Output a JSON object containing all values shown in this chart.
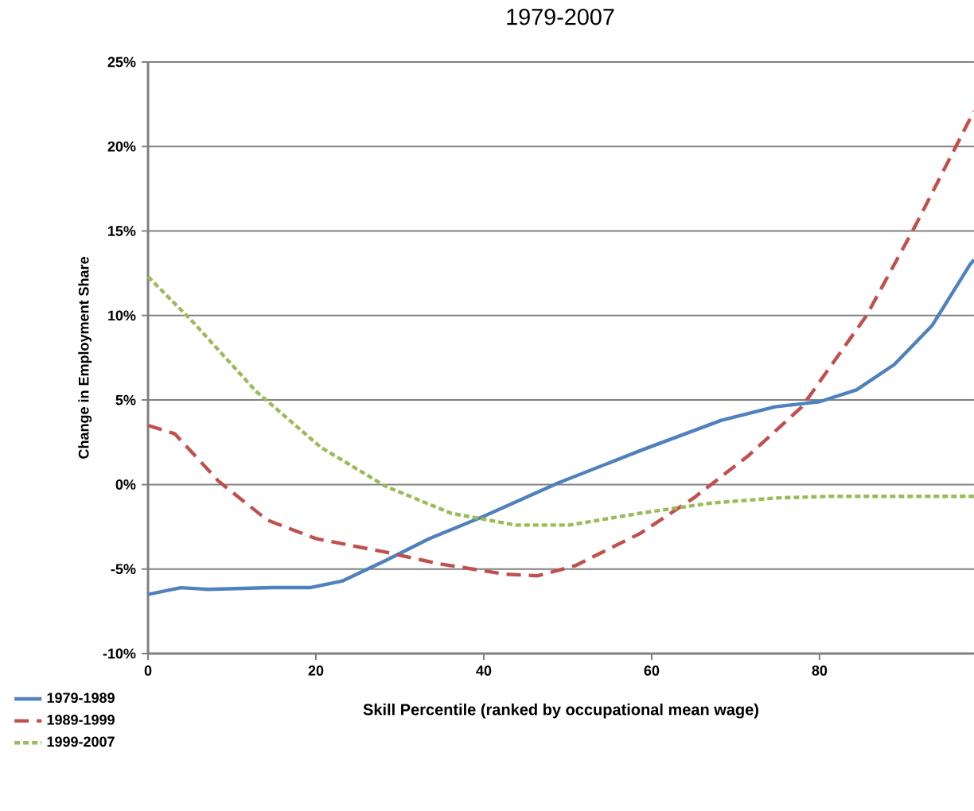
{
  "chart_data": {
    "type": "line",
    "title": "1979-2007",
    "xlabel": "Skill Percentile (ranked by occupational  mean wage)",
    "ylabel": "Change in Employment Share",
    "xlim": [
      0,
      98.4
    ],
    "xticks": [
      0,
      20,
      40,
      60,
      80
    ],
    "ylim": [
      -10,
      25
    ],
    "yticks": [
      {
        "value": -10,
        "label": "-10%"
      },
      {
        "value": -5,
        "label": "-5%"
      },
      {
        "value": 0,
        "label": "0%"
      },
      {
        "value": 5,
        "label": "5%"
      },
      {
        "value": 10,
        "label": "10%"
      },
      {
        "value": 15,
        "label": "15%"
      },
      {
        "value": 20,
        "label": "20%"
      },
      {
        "value": 25,
        "label": "25%"
      }
    ],
    "grid": "y",
    "legend": "bottom left",
    "marker": "none",
    "series": [
      {
        "name": "1979-1989",
        "color": "#4f81bd",
        "line_style": "solid",
        "x": [
          0,
          3.9,
          7.1,
          14.8,
          19.3,
          23.2,
          28.3,
          33.5,
          39.9,
          48.9,
          58.6,
          68.3,
          74.7,
          80,
          84.4,
          88.9,
          93.4,
          97.9,
          98.4
        ],
        "values": [
          -6.5,
          -6.1,
          -6.2,
          -6.1,
          -6.1,
          -5.7,
          -4.5,
          -3.2,
          -1.9,
          0.1,
          2.0,
          3.8,
          4.6,
          4.9,
          5.6,
          7.1,
          9.4,
          13.0,
          13.3
        ]
      },
      {
        "name": "1989-1999",
        "color": "#c0504d",
        "line_style": "dashed",
        "x": [
          0,
          3.2,
          8.4,
          14.2,
          20,
          28.3,
          34.8,
          42.5,
          46.4,
          50.9,
          58.6,
          65,
          71.5,
          77.9,
          85.6,
          91.4,
          98.4
        ],
        "values": [
          3.5,
          3.0,
          0.2,
          -2.1,
          -3.2,
          -4.0,
          -4.7,
          -5.3,
          -5.4,
          -4.8,
          -2.9,
          -0.8,
          1.7,
          4.6,
          10.0,
          15.3,
          22.1
        ]
      },
      {
        "name": "1999-2007",
        "color": "#9bbb59",
        "line_style": "dotted",
        "x": [
          0,
          5.2,
          12.9,
          20.6,
          28.3,
          36.1,
          43.8,
          50.2,
          58.6,
          67,
          74.7,
          81.1,
          98.4
        ],
        "values": [
          12.3,
          9.7,
          5.5,
          2.2,
          -0.1,
          -1.7,
          -2.4,
          -2.4,
          -1.7,
          -1.1,
          -0.8,
          -0.7,
          -0.7
        ]
      }
    ]
  }
}
